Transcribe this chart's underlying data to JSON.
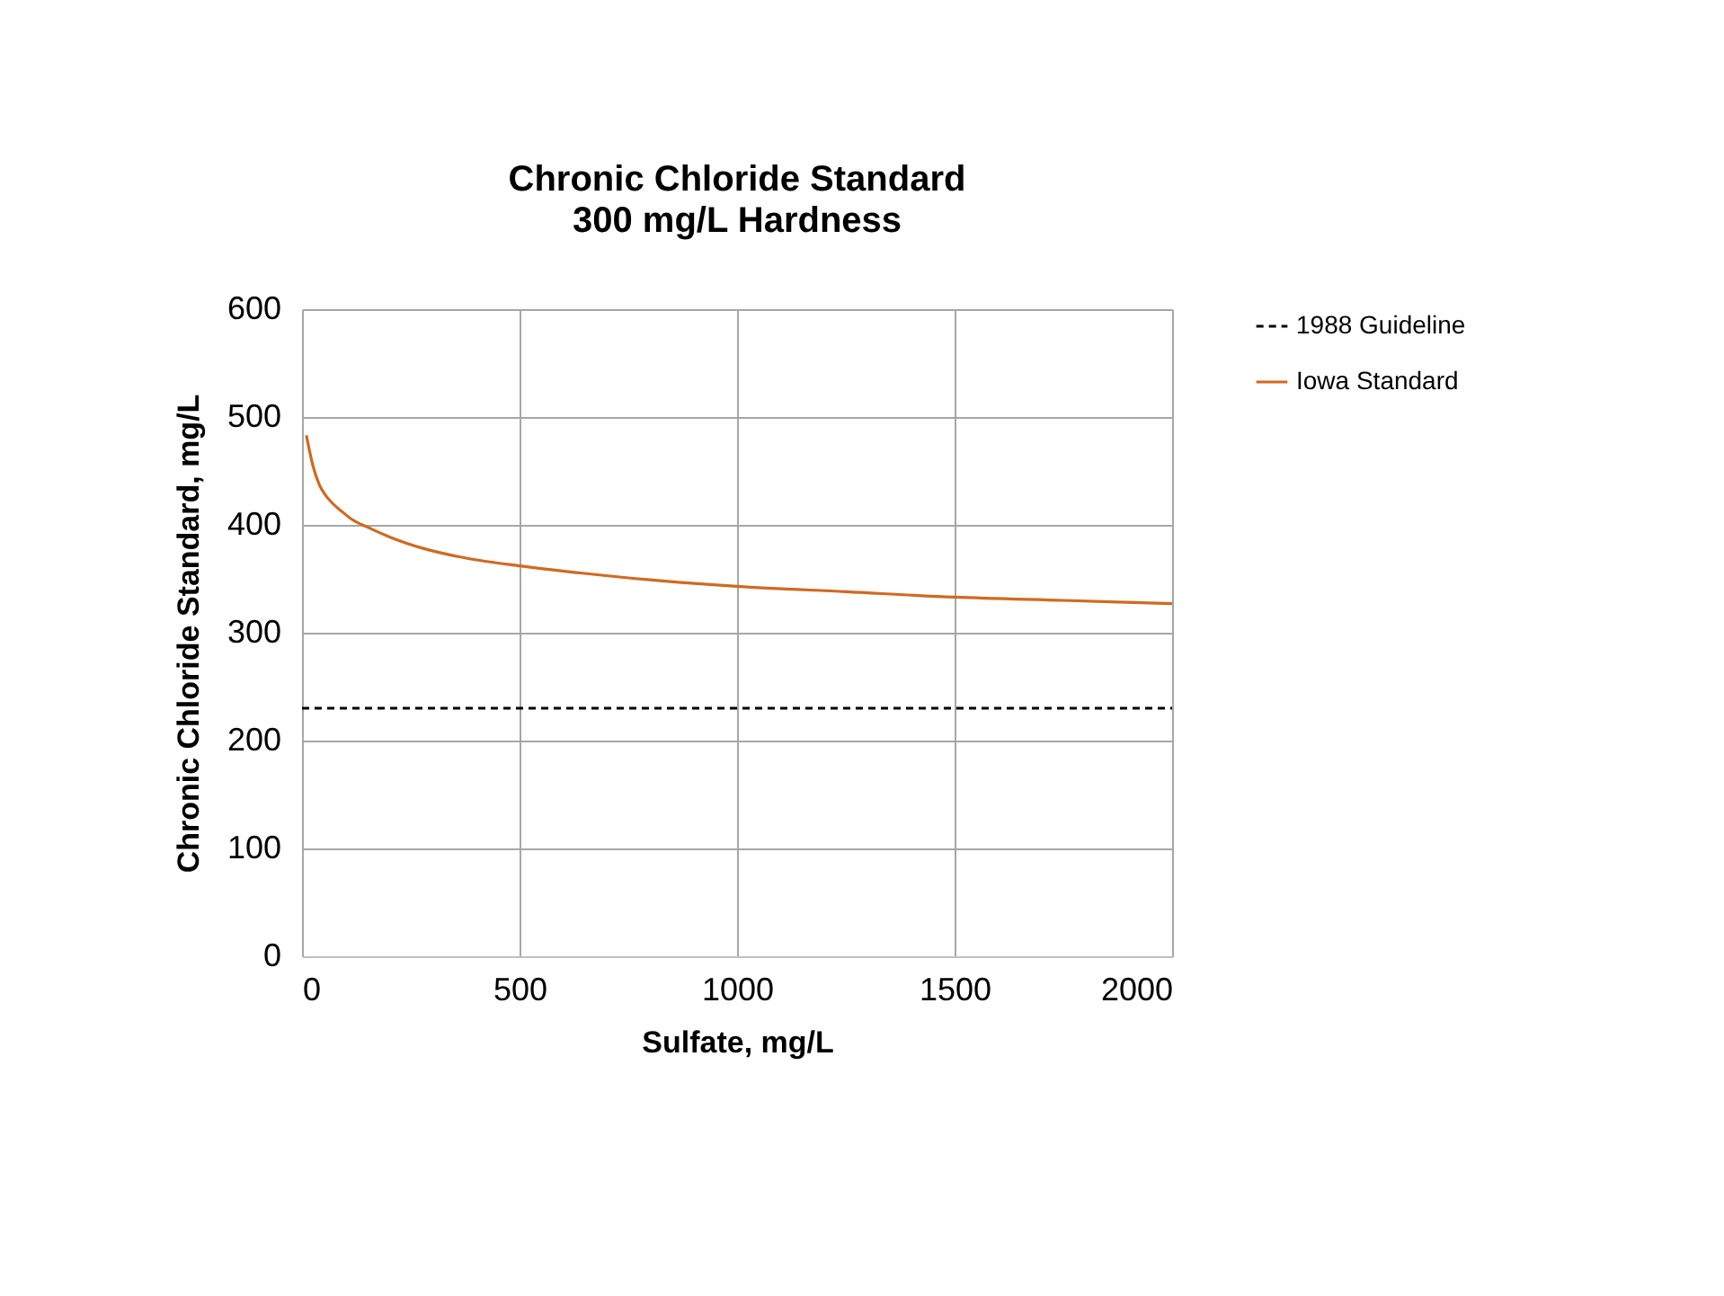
{
  "chart_data": {
    "type": "line",
    "title": "Chronic Chloride Standard",
    "subtitle": "300  mg/L Hardness",
    "xlabel": "Sulfate, mg/L",
    "ylabel": "Chronic  Chloride Standard, mg/L",
    "xlim": [
      0,
      2000
    ],
    "xticks": [
      0,
      500,
      1000,
      1500,
      2000
    ],
    "ylim": [
      0,
      600
    ],
    "yticks": [
      0,
      100,
      200,
      300,
      400,
      500,
      600
    ],
    "grid": true,
    "legend": "right",
    "series": [
      {
        "name": "1988 Guideline",
        "color": "#000000",
        "line_style": "dashed",
        "x": [
          0,
          2000
        ],
        "values": [
          230,
          230
        ]
      },
      {
        "name": "Iowa Standard",
        "color": "#d2691e",
        "line_style": "solid",
        "x": [
          10,
          25,
          40,
          55,
          70,
          90,
          115,
          150,
          200,
          280,
          380,
          500,
          650,
          800,
          1000,
          1250,
          1500,
          1750,
          2000
        ],
        "values": [
          483,
          455,
          437,
          427,
          420,
          413,
          405,
          398,
          389,
          378,
          369,
          362,
          355,
          349,
          343,
          338,
          333,
          330,
          327
        ]
      }
    ]
  }
}
